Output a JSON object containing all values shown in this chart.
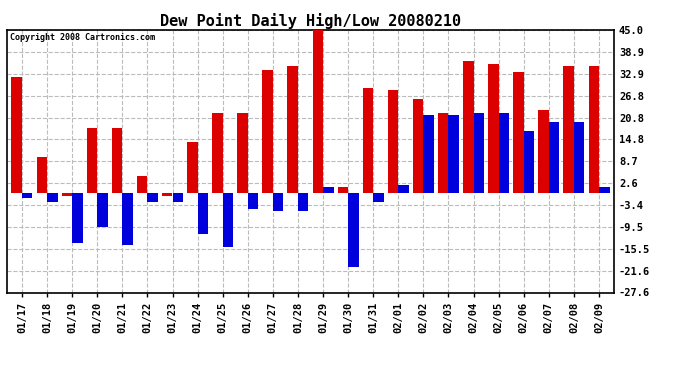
{
  "title": "Dew Point Daily High/Low 20080210",
  "copyright": "Copyright 2008 Cartronics.com",
  "dates": [
    "01/17",
    "01/18",
    "01/19",
    "01/20",
    "01/21",
    "01/22",
    "01/23",
    "01/24",
    "01/25",
    "01/26",
    "01/27",
    "01/28",
    "01/29",
    "01/30",
    "01/31",
    "02/01",
    "02/02",
    "02/03",
    "02/04",
    "02/05",
    "02/06",
    "02/07",
    "02/08",
    "02/09"
  ],
  "highs": [
    32.0,
    10.0,
    -1.0,
    18.0,
    18.0,
    4.5,
    -1.0,
    14.0,
    22.0,
    22.0,
    34.0,
    35.0,
    45.0,
    1.5,
    29.0,
    28.5,
    26.0,
    22.0,
    36.5,
    35.5,
    33.5,
    23.0,
    35.0,
    35.0
  ],
  "lows": [
    -1.5,
    -2.5,
    -14.0,
    -9.5,
    -14.5,
    -2.5,
    -2.5,
    -11.5,
    -15.0,
    -4.5,
    -5.0,
    -5.0,
    1.5,
    -20.5,
    -2.5,
    2.0,
    21.5,
    21.5,
    22.0,
    22.0,
    17.0,
    19.5,
    19.5,
    1.5
  ],
  "high_color": "#dd0000",
  "low_color": "#0000dd",
  "bg_color": "#ffffff",
  "ylim": [
    -27.6,
    45.0
  ],
  "yticks": [
    45.0,
    38.9,
    32.9,
    26.8,
    20.8,
    14.8,
    8.7,
    2.6,
    -3.4,
    -9.5,
    -15.5,
    -21.6,
    -27.6
  ]
}
